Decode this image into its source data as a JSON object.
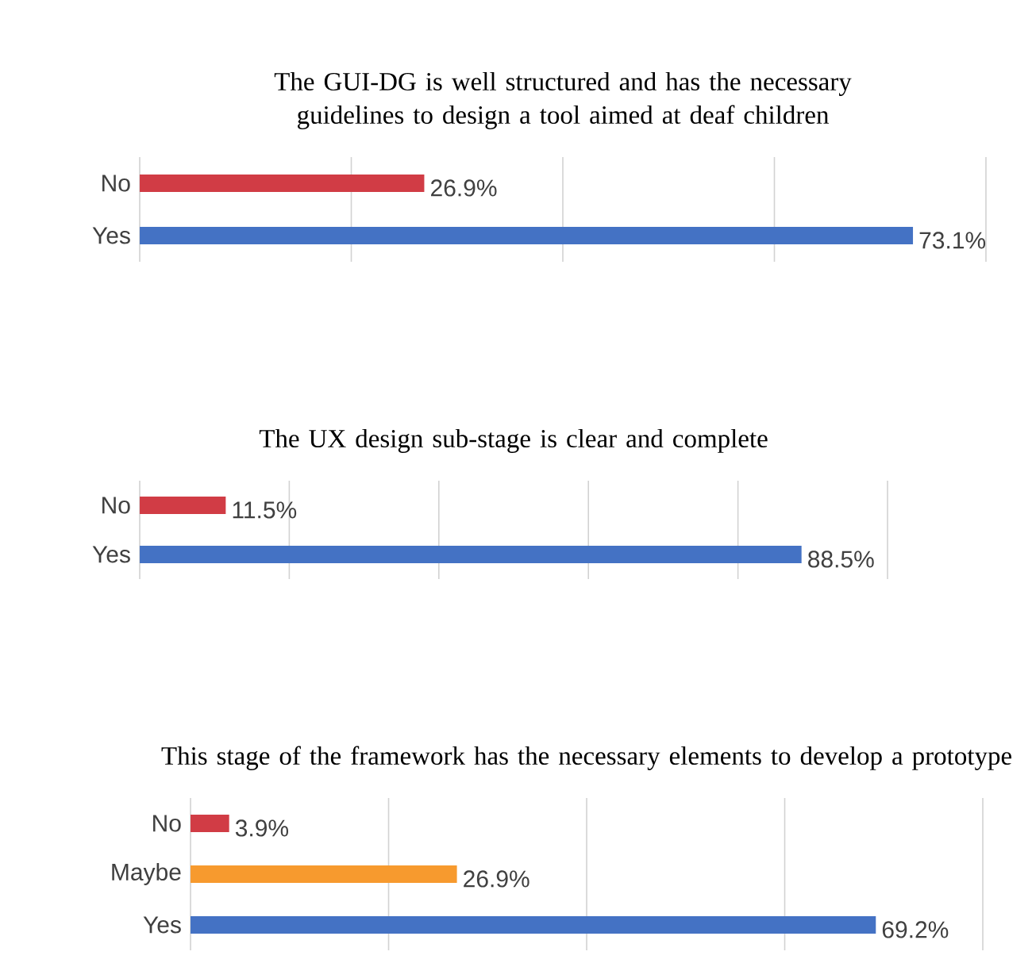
{
  "chart_data": [
    {
      "type": "bar",
      "orientation": "horizontal",
      "title": "The GUI-DG is well structured and has the necessary guidelines to design a tool aimed at deaf children",
      "categories": [
        "No",
        "Yes"
      ],
      "values": [
        26.9,
        73.1
      ],
      "colors": [
        "#d13c45",
        "#4472c4"
      ],
      "value_labels": [
        "26.9%",
        "73.1%"
      ],
      "xlim": [
        0,
        80
      ],
      "xticks": [
        {
          "value": 0,
          "label": null
        },
        {
          "value": 20,
          "label": null
        },
        {
          "value": 40,
          "label": null
        },
        {
          "value": 60,
          "label": null
        },
        {
          "value": 80,
          "label": null
        }
      ],
      "grid": "x",
      "tick_labels": "y"
    },
    {
      "type": "bar",
      "orientation": "horizontal",
      "title": "The UX design sub-stage is clear and complete",
      "categories": [
        "No",
        "Yes"
      ],
      "values": [
        11.5,
        88.5
      ],
      "colors": [
        "#d13c45",
        "#4472c4"
      ],
      "value_labels": [
        "11.5%",
        "88.5%"
      ],
      "xlim": [
        0,
        100
      ],
      "xticks": [
        {
          "value": 0,
          "label": null
        },
        {
          "value": 20,
          "label": null
        },
        {
          "value": 40,
          "label": null
        },
        {
          "value": 60,
          "label": null
        },
        {
          "value": 80,
          "label": null
        },
        {
          "value": 100,
          "label": null
        }
      ],
      "grid": "x",
      "tick_labels": "y"
    },
    {
      "type": "bar",
      "orientation": "horizontal",
      "title": "This stage of the framework has the necessary elements to develop a prototype",
      "categories": [
        "No",
        "Maybe",
        "Yes"
      ],
      "values": [
        3.9,
        26.9,
        69.2
      ],
      "colors": [
        "#d13c45",
        "#f79a2e",
        "#4472c4"
      ],
      "value_labels": [
        "3.9%",
        "26.9%",
        "69.2%"
      ],
      "xlim": [
        0,
        80
      ],
      "xticks": [
        {
          "value": 0,
          "label": null
        },
        {
          "value": 20,
          "label": null
        },
        {
          "value": 40,
          "label": null
        },
        {
          "value": 60,
          "label": null
        },
        {
          "value": 80,
          "label": null
        }
      ],
      "grid": "x",
      "tick_labels": "y"
    }
  ]
}
